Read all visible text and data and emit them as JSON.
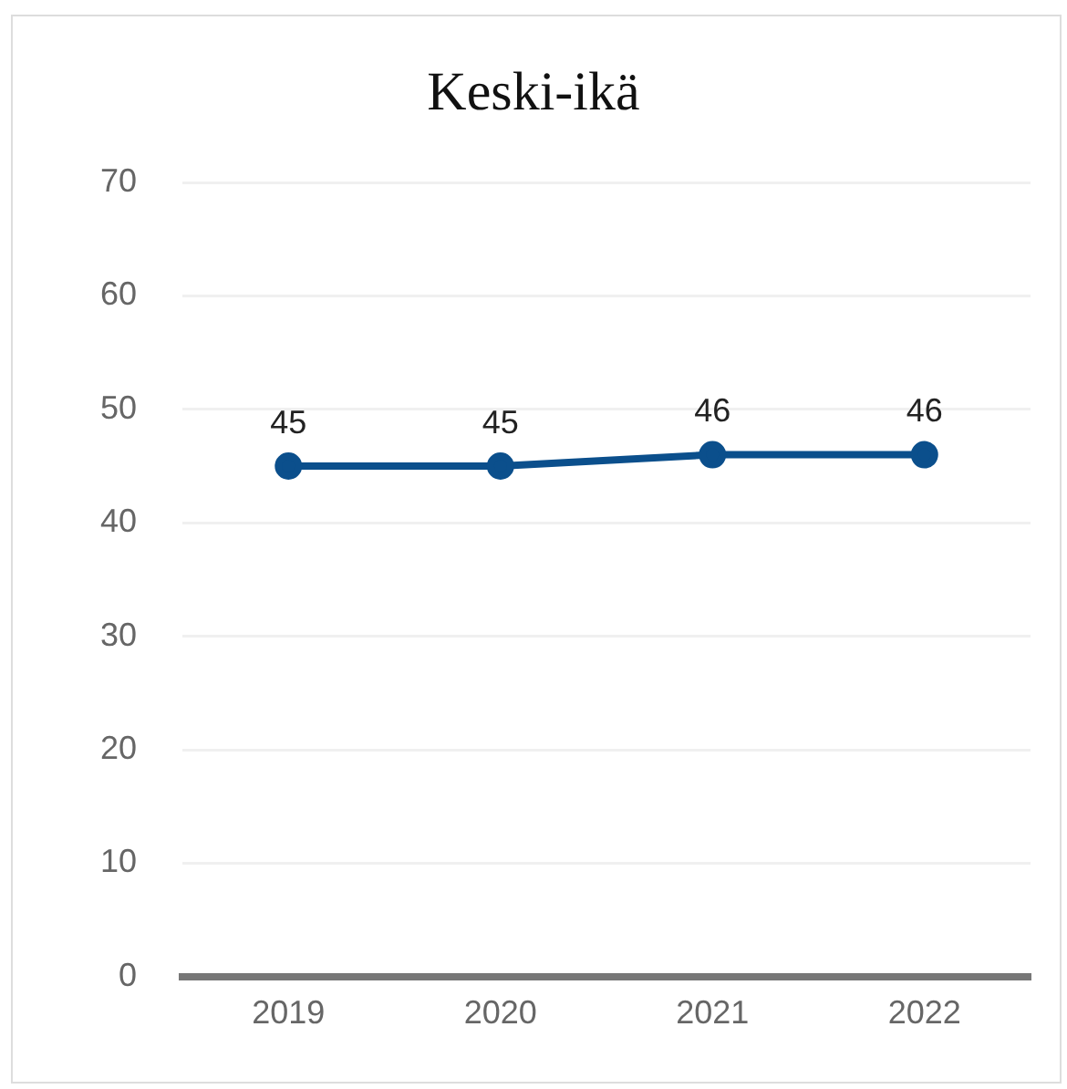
{
  "chart_data": {
    "type": "line",
    "title": "Keski-ikä",
    "categories": [
      "2019",
      "2020",
      "2021",
      "2022"
    ],
    "series": [
      {
        "color": "#0b4f8c",
        "values": [
          45,
          45,
          46,
          46
        ]
      }
    ],
    "ylim": [
      0,
      70
    ],
    "yticks": [
      0,
      10,
      20,
      30,
      40,
      50,
      60,
      70
    ],
    "grid": "y",
    "legend": false,
    "marker": "circle",
    "line_style": "solid",
    "data_labels": true
  }
}
